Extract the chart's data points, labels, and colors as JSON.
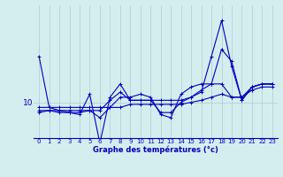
{
  "background_color": "#d4eef0",
  "grid_color": "#a8cdd0",
  "line_color": "#0000bb",
  "xlabel": "Graphe des températures (°c)",
  "ylabel_tick": "10",
  "x_ticks": [
    0,
    1,
    2,
    3,
    4,
    5,
    6,
    7,
    8,
    9,
    10,
    11,
    12,
    13,
    14,
    15,
    16,
    17,
    18,
    19,
    20,
    21,
    22,
    23
  ],
  "ytick_value": 10,
  "lines": [
    [
      14.5,
      9.5,
      9.2,
      9.0,
      8.8,
      10.8,
      6.0,
      10.5,
      11.8,
      10.2,
      10.2,
      10.2,
      9.0,
      9.0,
      10.0,
      10.5,
      11.0,
      14.5,
      18.0,
      13.5,
      10.2,
      11.5,
      11.8,
      11.8
    ],
    [
      9.0,
      9.2,
      9.0,
      9.0,
      9.0,
      9.2,
      9.2,
      10.2,
      11.0,
      10.2,
      10.2,
      10.2,
      10.2,
      10.2,
      10.2,
      10.5,
      11.2,
      11.8,
      11.8,
      10.5,
      10.5,
      11.5,
      11.8,
      11.8
    ],
    [
      9.5,
      9.5,
      9.5,
      9.5,
      9.5,
      9.5,
      9.5,
      9.5,
      9.5,
      9.8,
      9.8,
      9.8,
      9.8,
      9.8,
      9.8,
      10.0,
      10.2,
      10.5,
      10.8,
      10.5,
      10.5,
      11.2,
      11.5,
      11.5
    ],
    [
      9.2,
      9.2,
      9.2,
      9.2,
      9.2,
      9.2,
      8.5,
      9.5,
      10.5,
      10.5,
      10.8,
      10.5,
      8.8,
      8.5,
      10.8,
      11.5,
      11.8,
      11.8,
      15.2,
      14.0,
      10.2,
      11.5,
      11.8,
      11.8
    ]
  ],
  "ylim": [
    6.5,
    19.5
  ],
  "xlim": [
    -0.5,
    23.5
  ],
  "tick_fontsize": 5.0,
  "ytick_fontsize": 6.5,
  "xlabel_fontsize": 6.0,
  "linewidth": 0.8,
  "markersize": 2.5
}
